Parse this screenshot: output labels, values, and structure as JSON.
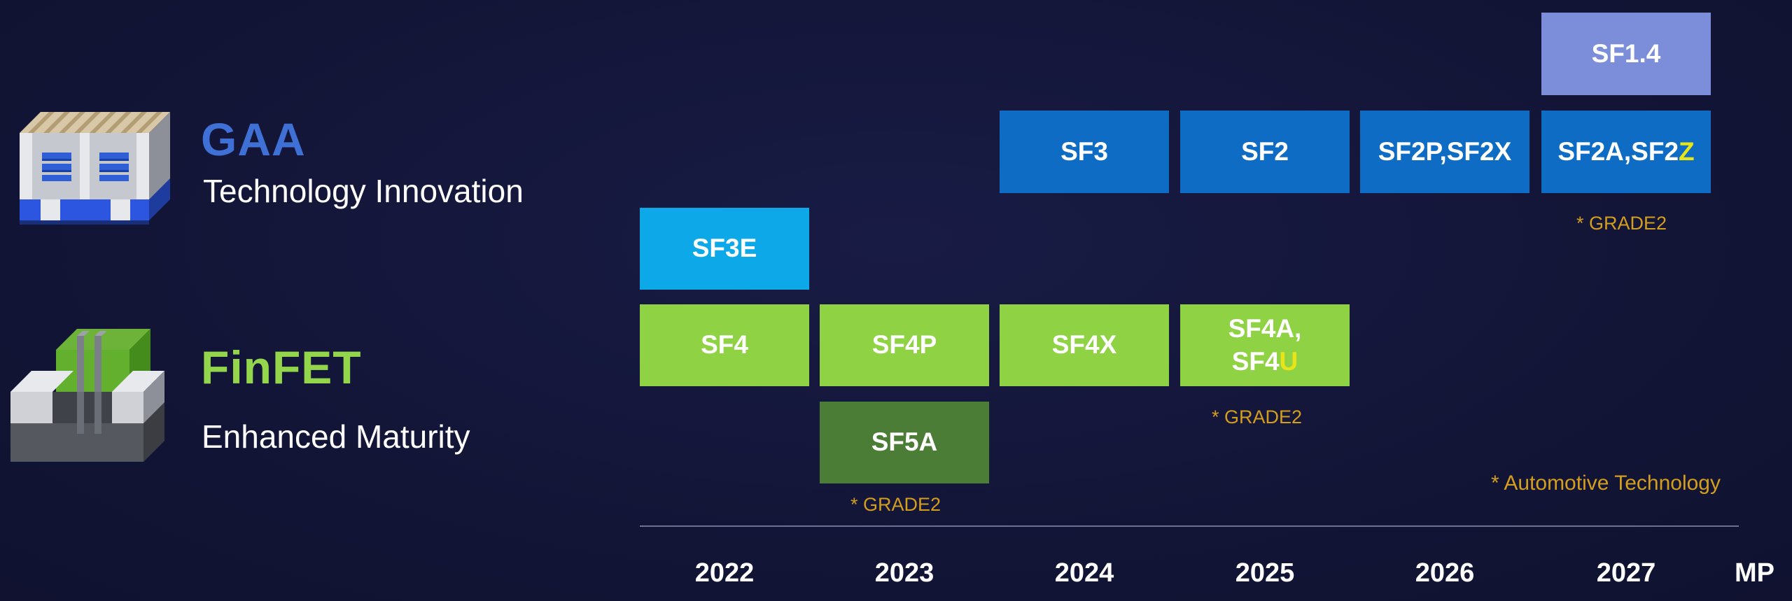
{
  "legend": {
    "gaa": {
      "title": "GAA",
      "subtitle": "Technology Innovation",
      "icon": "gaa-transistor-icon",
      "color": "#3e70d6"
    },
    "finfet": {
      "title": "FinFET",
      "subtitle": "Enhanced Maturity",
      "icon": "finfet-transistor-icon",
      "color": "#93d64b"
    }
  },
  "roadmap": {
    "sf14": {
      "label": "SF1.4"
    },
    "sf3": {
      "label": "SF3"
    },
    "sf2": {
      "label": "SF2"
    },
    "sf2p": {
      "label": "SF2P,SF2X"
    },
    "sf2a": {
      "label_main": "SF2A,SF2",
      "label_highlight": "Z"
    },
    "sf3e": {
      "label": "SF3E"
    },
    "sf4": {
      "label": "SF4"
    },
    "sf4p": {
      "label": "SF4P"
    },
    "sf4x": {
      "label": "SF4X"
    },
    "sf4a": {
      "label_line1": "SF4A,",
      "label_line2_main": "SF4",
      "label_line2_highlight": "U"
    },
    "sf5a": {
      "label": "SF5A"
    }
  },
  "notes": {
    "sf2a_grade": "* GRADE2",
    "sf4a_grade": "* GRADE2",
    "sf5a_grade": "* GRADE2",
    "automotive": "* Automotive Technology"
  },
  "axis": {
    "years": [
      "2022",
      "2023",
      "2024",
      "2025",
      "2026",
      "2027"
    ],
    "end_label": "MP"
  },
  "colors": {
    "background": "#14163a",
    "gaa_box": "#0e6cc4",
    "sf3e_box": "#0ca8e8",
    "finfet_box": "#8fd344",
    "sf5a_box": "#4c7d36",
    "sf14_box": "#7c8ed9",
    "note_text": "#d49e1d",
    "highlight_text": "#e8e417"
  }
}
